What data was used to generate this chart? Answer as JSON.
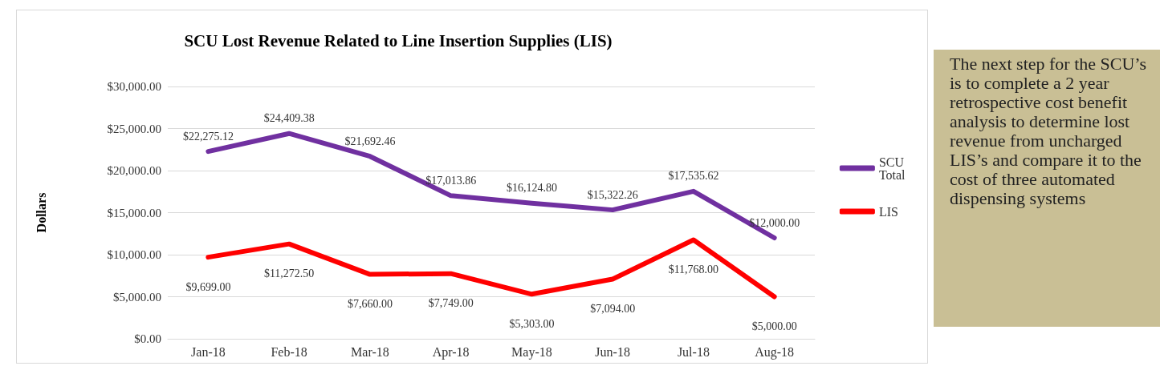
{
  "chart_data": {
    "type": "line",
    "title": "SCU Lost Revenue Related to Line Insertion Supplies (LIS)",
    "ylabel": "Dollars",
    "categories": [
      "Jan-18",
      "Feb-18",
      "Mar-18",
      "Apr-18",
      "May-18",
      "Jun-18",
      "Jul-18",
      "Aug-18"
    ],
    "series": [
      {
        "name": "SCU Total",
        "color": "#7030a0",
        "values": [
          22275.12,
          24409.38,
          21692.46,
          17013.86,
          16124.8,
          15322.26,
          17535.62,
          12000.0
        ],
        "value_labels": [
          "$22,275.12",
          "$24,409.38",
          "$21,692.46",
          "$17,013.86",
          "$16,124.80",
          "$15,322.26",
          "$17,535.62",
          "$12,000.00"
        ]
      },
      {
        "name": "LIS",
        "color": "#ff0000",
        "values": [
          9699,
          11272.5,
          7660,
          7749,
          5303,
          7094,
          11768,
          5000
        ],
        "value_labels": [
          "$9,699.00",
          "$11,272.50",
          "$7,660.00",
          "$7,749.00",
          "$5,303.00",
          "$7,094.00",
          "$11,768.00",
          "$5,000.00"
        ]
      }
    ],
    "ylim": [
      0,
      30000
    ],
    "yticks": [
      {
        "value": 0,
        "label": "$0.00"
      },
      {
        "value": 5000,
        "label": "$5,000.00"
      },
      {
        "value": 10000,
        "label": "$10,000.00"
      },
      {
        "value": 15000,
        "label": "$15,000.00"
      },
      {
        "value": 20000,
        "label": "$20,000.00"
      },
      {
        "value": 25000,
        "label": "$25,000.00"
      },
      {
        "value": 30000,
        "label": "$30,000.00"
      }
    ],
    "grid": "y",
    "legend": "right",
    "marker": "none",
    "line_style": "solid",
    "annotations": [
      "The next step for the SCU’s is to complete a 2 year retrospective cost benefit analysis to determine lost revenue from uncharged LIS’s and compare it to the cost of three automated dispensing systems"
    ]
  }
}
